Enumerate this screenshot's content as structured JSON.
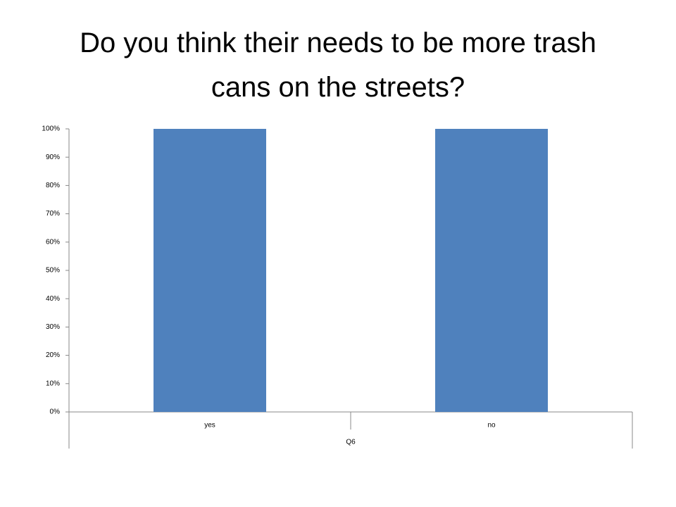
{
  "chart_data": {
    "type": "bar",
    "title": "Do you think their needs to be more trash cans on the streets?",
    "categories": [
      "yes",
      "no"
    ],
    "values": [
      100,
      100
    ],
    "color": "#4f81bd",
    "xlabel": "Q6",
    "ylim": [
      0,
      100
    ],
    "yticks": [
      {
        "value": 0,
        "label": "0%"
      },
      {
        "value": 10,
        "label": "10%"
      },
      {
        "value": 20,
        "label": "20%"
      },
      {
        "value": 30,
        "label": "30%"
      },
      {
        "value": 40,
        "label": "40%"
      },
      {
        "value": 50,
        "label": "50%"
      },
      {
        "value": 60,
        "label": "60%"
      },
      {
        "value": 70,
        "label": "70%"
      },
      {
        "value": 80,
        "label": "80%"
      },
      {
        "value": 90,
        "label": "90%"
      },
      {
        "value": 100,
        "label": "100%"
      }
    ],
    "grid": false
  }
}
